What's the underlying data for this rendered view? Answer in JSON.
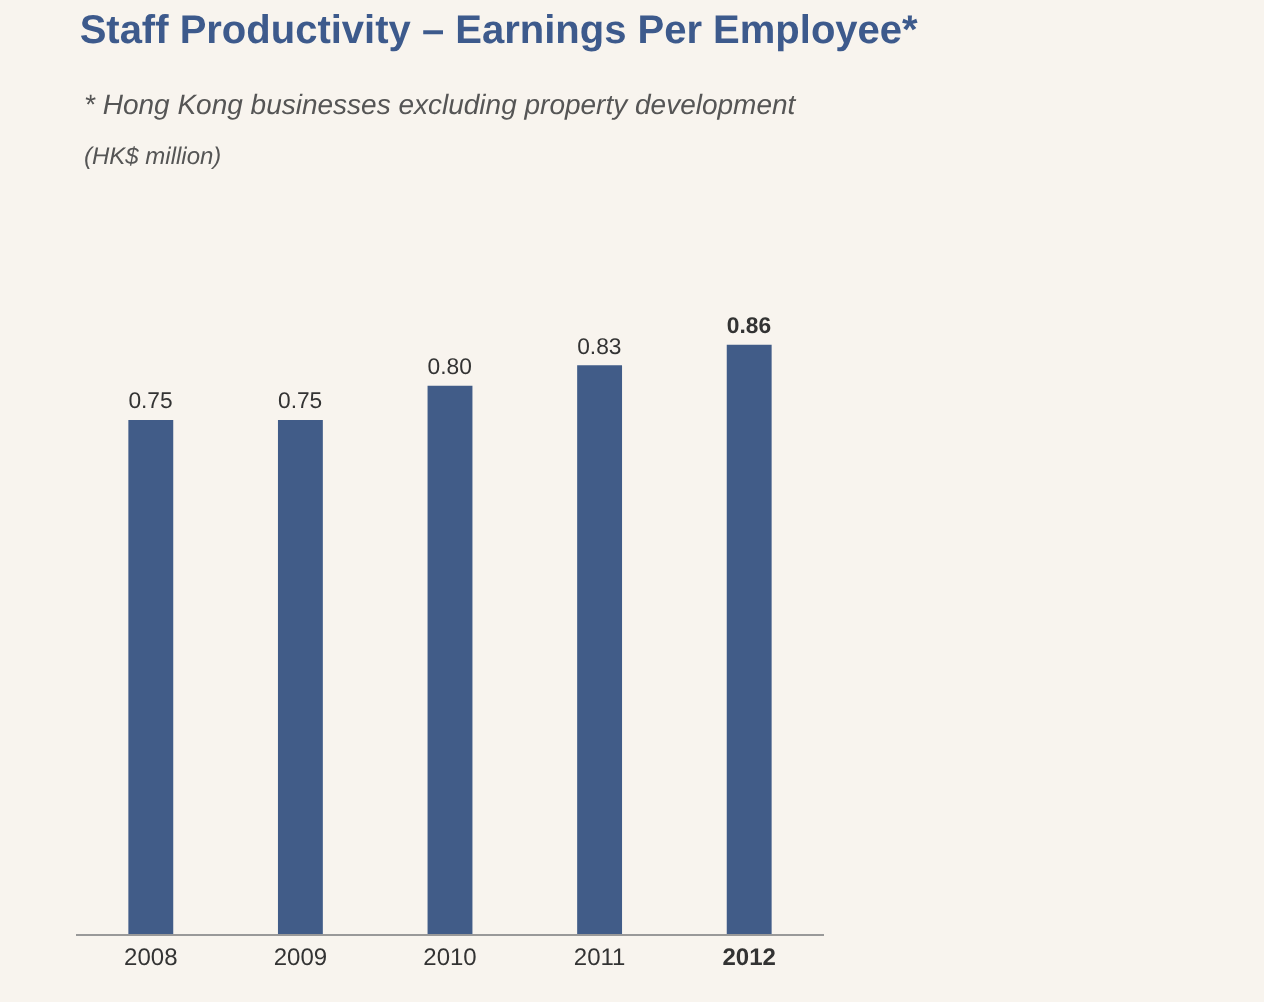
{
  "chart_data": {
    "type": "bar",
    "title": "Staff Productivity – Earnings Per Employee*",
    "subtitle": "* Hong Kong businesses excluding property development",
    "annotations": [
      "(HK$ million)"
    ],
    "categories": [
      "2008",
      "2009",
      "2010",
      "2011",
      "2012"
    ],
    "values": [
      0.75,
      0.75,
      0.8,
      0.83,
      0.86
    ],
    "value_labels": [
      "0.75",
      "0.75",
      "0.80",
      "0.83",
      "0.86"
    ],
    "color": "#415c88",
    "tick_labels": "x"
  }
}
